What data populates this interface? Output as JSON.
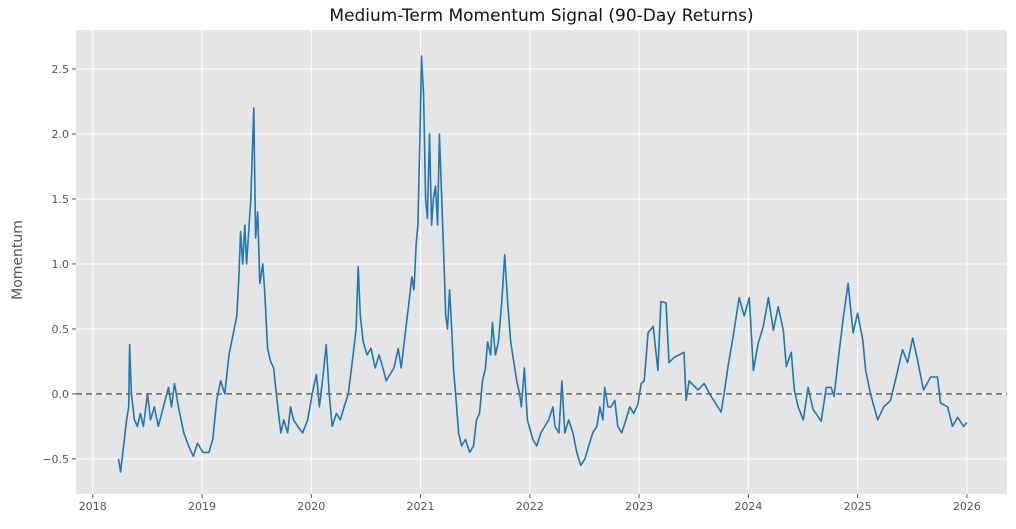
{
  "chart_data": {
    "type": "line",
    "title": "Medium-Term Momentum Signal (90-Day Returns)",
    "xlabel": "",
    "ylabel": "Momentum",
    "xlim": [
      "2017-11-06",
      "2026-05-15"
    ],
    "ylim": [
      -0.77,
      2.8
    ],
    "xticks": [
      "2018",
      "2019",
      "2020",
      "2021",
      "2022",
      "2023",
      "2024",
      "2025",
      "2026"
    ],
    "yticks": [
      -0.5,
      0.0,
      0.5,
      1.0,
      1.5,
      2.0,
      2.5
    ],
    "ytick_labels": [
      "−0.5",
      "0.0",
      "0.5",
      "1.0",
      "1.5",
      "2.0",
      "2.5"
    ],
    "grid": true,
    "reference_line": {
      "y": 0.0,
      "style": "dashed",
      "color": "#666666"
    },
    "colors": {
      "line": "#1f77b4",
      "plot_bg": "#e5e5e5",
      "grid": "#ffffff"
    },
    "series": [
      {
        "points": [
          [
            "2018-03-28",
            -0.5
          ],
          [
            "2018-04-04",
            -0.6
          ],
          [
            "2018-04-14",
            -0.4
          ],
          [
            "2018-04-24",
            -0.2
          ],
          [
            "2018-05-01",
            -0.1
          ],
          [
            "2018-05-04",
            0.38
          ],
          [
            "2018-05-10",
            0.0
          ],
          [
            "2018-05-20",
            -0.2
          ],
          [
            "2018-05-30",
            -0.25
          ],
          [
            "2018-06-09",
            -0.15
          ],
          [
            "2018-06-19",
            -0.25
          ],
          [
            "2018-07-03",
            0.0
          ],
          [
            "2018-07-13",
            -0.2
          ],
          [
            "2018-07-26",
            -0.1
          ],
          [
            "2018-08-08",
            -0.25
          ],
          [
            "2018-08-25",
            -0.1
          ],
          [
            "2018-09-11",
            0.05
          ],
          [
            "2018-09-21",
            -0.1
          ],
          [
            "2018-10-01",
            0.08
          ],
          [
            "2018-10-14",
            -0.1
          ],
          [
            "2018-11-01",
            -0.3
          ],
          [
            "2018-11-17",
            -0.4
          ],
          [
            "2018-12-03",
            -0.48
          ],
          [
            "2018-12-17",
            -0.38
          ],
          [
            "2019-01-04",
            -0.45
          ],
          [
            "2019-01-24",
            -0.45
          ],
          [
            "2019-02-06",
            -0.35
          ],
          [
            "2019-02-19",
            -0.05
          ],
          [
            "2019-03-04",
            0.1
          ],
          [
            "2019-03-18",
            0.0
          ],
          [
            "2019-04-01",
            0.3
          ],
          [
            "2019-04-14",
            0.45
          ],
          [
            "2019-04-27",
            0.6
          ],
          [
            "2019-05-04",
            0.9
          ],
          [
            "2019-05-10",
            1.25
          ],
          [
            "2019-05-17",
            1.0
          ],
          [
            "2019-05-24",
            1.3
          ],
          [
            "2019-05-30",
            1.0
          ],
          [
            "2019-06-06",
            1.25
          ],
          [
            "2019-06-13",
            1.5
          ],
          [
            "2019-06-23",
            2.2
          ],
          [
            "2019-06-29",
            1.2
          ],
          [
            "2019-07-06",
            1.4
          ],
          [
            "2019-07-13",
            0.85
          ],
          [
            "2019-07-23",
            1.0
          ],
          [
            "2019-07-29",
            0.8
          ],
          [
            "2019-08-08",
            0.35
          ],
          [
            "2019-08-18",
            0.25
          ],
          [
            "2019-08-28",
            0.2
          ],
          [
            "2019-09-11",
            -0.1
          ],
          [
            "2019-09-21",
            -0.3
          ],
          [
            "2019-10-01",
            -0.2
          ],
          [
            "2019-10-14",
            -0.3
          ],
          [
            "2019-10-24",
            -0.1
          ],
          [
            "2019-11-03",
            -0.2
          ],
          [
            "2019-11-17",
            -0.25
          ],
          [
            "2019-12-03",
            -0.3
          ],
          [
            "2019-12-20",
            -0.2
          ],
          [
            "2020-01-04",
            0.0
          ],
          [
            "2020-01-18",
            0.15
          ],
          [
            "2020-01-28",
            -0.1
          ],
          [
            "2020-02-10",
            0.15
          ],
          [
            "2020-02-20",
            0.38
          ],
          [
            "2020-03-01",
            0.0
          ],
          [
            "2020-03-11",
            -0.25
          ],
          [
            "2020-03-25",
            -0.15
          ],
          [
            "2020-04-07",
            -0.2
          ],
          [
            "2020-04-20",
            -0.1
          ],
          [
            "2020-05-04",
            0.0
          ],
          [
            "2020-05-20",
            0.3
          ],
          [
            "2020-05-30",
            0.5
          ],
          [
            "2020-06-06",
            0.98
          ],
          [
            "2020-06-13",
            0.6
          ],
          [
            "2020-06-23",
            0.4
          ],
          [
            "2020-07-06",
            0.3
          ],
          [
            "2020-07-19",
            0.35
          ],
          [
            "2020-08-02",
            0.2
          ],
          [
            "2020-08-15",
            0.3
          ],
          [
            "2020-08-28",
            0.2
          ],
          [
            "2020-09-08",
            0.1
          ],
          [
            "2020-09-21",
            0.15
          ],
          [
            "2020-10-04",
            0.2
          ],
          [
            "2020-10-18",
            0.35
          ],
          [
            "2020-10-28",
            0.2
          ],
          [
            "2020-11-10",
            0.45
          ],
          [
            "2020-11-23",
            0.7
          ],
          [
            "2020-12-03",
            0.9
          ],
          [
            "2020-12-10",
            0.8
          ],
          [
            "2020-12-17",
            1.15
          ],
          [
            "2020-12-23",
            1.3
          ],
          [
            "2020-12-30",
            2.0
          ],
          [
            "2021-01-04",
            2.6
          ],
          [
            "2021-01-11",
            2.3
          ],
          [
            "2021-01-18",
            1.5
          ],
          [
            "2021-01-24",
            1.35
          ],
          [
            "2021-01-31",
            2.0
          ],
          [
            "2021-02-07",
            1.3
          ],
          [
            "2021-02-13",
            1.5
          ],
          [
            "2021-02-20",
            1.6
          ],
          [
            "2021-02-27",
            1.3
          ],
          [
            "2021-03-05",
            2.0
          ],
          [
            "2021-03-12",
            1.55
          ],
          [
            "2021-03-19",
            1.1
          ],
          [
            "2021-03-26",
            0.6
          ],
          [
            "2021-04-01",
            0.5
          ],
          [
            "2021-04-08",
            0.8
          ],
          [
            "2021-04-15",
            0.5
          ],
          [
            "2021-04-21",
            0.2
          ],
          [
            "2021-04-28",
            0.0
          ],
          [
            "2021-05-08",
            -0.3
          ],
          [
            "2021-05-18",
            -0.4
          ],
          [
            "2021-05-31",
            -0.35
          ],
          [
            "2021-06-14",
            -0.45
          ],
          [
            "2021-06-27",
            -0.4
          ],
          [
            "2021-07-07",
            -0.2
          ],
          [
            "2021-07-17",
            -0.15
          ],
          [
            "2021-07-27",
            0.1
          ],
          [
            "2021-08-06",
            0.2
          ],
          [
            "2021-08-13",
            0.4
          ],
          [
            "2021-08-23",
            0.3
          ],
          [
            "2021-08-29",
            0.55
          ],
          [
            "2021-09-08",
            0.3
          ],
          [
            "2021-09-18",
            0.4
          ],
          [
            "2021-09-29",
            0.7
          ],
          [
            "2021-10-09",
            1.07
          ],
          [
            "2021-10-19",
            0.7
          ],
          [
            "2021-10-29",
            0.4
          ],
          [
            "2021-11-08",
            0.25
          ],
          [
            "2021-11-18",
            0.1
          ],
          [
            "2021-11-28",
            0.0
          ],
          [
            "2021-12-04",
            -0.1
          ],
          [
            "2021-12-14",
            0.2
          ],
          [
            "2021-12-24",
            -0.2
          ],
          [
            "2022-01-11",
            -0.35
          ],
          [
            "2022-01-24",
            -0.4
          ],
          [
            "2022-02-07",
            -0.3
          ],
          [
            "2022-02-20",
            -0.25
          ],
          [
            "2022-03-05",
            -0.2
          ],
          [
            "2022-03-19",
            -0.1
          ],
          [
            "2022-03-26",
            -0.25
          ],
          [
            "2022-04-08",
            -0.3
          ],
          [
            "2022-04-18",
            0.1
          ],
          [
            "2022-04-28",
            -0.3
          ],
          [
            "2022-05-11",
            -0.2
          ],
          [
            "2022-05-25",
            -0.3
          ],
          [
            "2022-06-07",
            -0.45
          ],
          [
            "2022-06-20",
            -0.55
          ],
          [
            "2022-07-04",
            -0.5
          ],
          [
            "2022-07-17",
            -0.4
          ],
          [
            "2022-07-30",
            -0.3
          ],
          [
            "2022-08-13",
            -0.25
          ],
          [
            "2022-08-23",
            -0.1
          ],
          [
            "2022-09-02",
            -0.2
          ],
          [
            "2022-09-08",
            0.05
          ],
          [
            "2022-09-19",
            -0.1
          ],
          [
            "2022-09-29",
            -0.1
          ],
          [
            "2022-10-12",
            -0.05
          ],
          [
            "2022-10-22",
            -0.25
          ],
          [
            "2022-11-04",
            -0.3
          ],
          [
            "2022-11-18",
            -0.2
          ],
          [
            "2022-12-01",
            -0.1
          ],
          [
            "2022-12-14",
            -0.15
          ],
          [
            "2022-12-28",
            -0.08
          ],
          [
            "2023-01-08",
            0.08
          ],
          [
            "2023-01-18",
            0.1
          ],
          [
            "2023-01-31",
            0.47
          ],
          [
            "2023-02-17",
            0.52
          ],
          [
            "2023-03-05",
            0.18
          ],
          [
            "2023-03-15",
            0.71
          ],
          [
            "2023-04-01",
            0.7
          ],
          [
            "2023-04-11",
            0.24
          ],
          [
            "2023-04-28",
            0.28
          ],
          [
            "2023-05-31",
            0.32
          ],
          [
            "2023-06-07",
            -0.05
          ],
          [
            "2023-06-17",
            0.1
          ],
          [
            "2023-07-17",
            0.03
          ],
          [
            "2023-08-06",
            0.08
          ],
          [
            "2023-08-30",
            -0.02
          ],
          [
            "2023-10-02",
            -0.14
          ],
          [
            "2023-10-12",
            0.0
          ],
          [
            "2023-10-25",
            0.21
          ],
          [
            "2023-11-11",
            0.44
          ],
          [
            "2023-12-01",
            0.74
          ],
          [
            "2023-12-18",
            0.6
          ],
          [
            "2024-01-04",
            0.74
          ],
          [
            "2024-01-18",
            0.18
          ],
          [
            "2024-02-03",
            0.39
          ],
          [
            "2024-02-20",
            0.52
          ],
          [
            "2024-03-08",
            0.74
          ],
          [
            "2024-03-25",
            0.49
          ],
          [
            "2024-04-10",
            0.67
          ],
          [
            "2024-04-27",
            0.49
          ],
          [
            "2024-05-07",
            0.21
          ],
          [
            "2024-05-24",
            0.32
          ],
          [
            "2024-06-03",
            0.03
          ],
          [
            "2024-06-16",
            -0.1
          ],
          [
            "2024-07-03",
            -0.2
          ],
          [
            "2024-07-19",
            0.05
          ],
          [
            "2024-08-05",
            -0.12
          ],
          [
            "2024-09-01",
            -0.21
          ],
          [
            "2024-09-18",
            0.05
          ],
          [
            "2024-10-04",
            0.05
          ],
          [
            "2024-10-14",
            -0.02
          ],
          [
            "2024-10-28",
            0.26
          ],
          [
            "2024-11-13",
            0.57
          ],
          [
            "2024-11-30",
            0.85
          ],
          [
            "2024-12-17",
            0.47
          ],
          [
            "2025-01-01",
            0.62
          ],
          [
            "2025-01-18",
            0.42
          ],
          [
            "2025-01-28",
            0.18
          ],
          [
            "2025-02-13",
            0.0
          ],
          [
            "2025-03-09",
            -0.2
          ],
          [
            "2025-03-29",
            -0.1
          ],
          [
            "2025-04-21",
            -0.05
          ],
          [
            "2025-05-15",
            0.18
          ],
          [
            "2025-05-31",
            0.34
          ],
          [
            "2025-06-17",
            0.24
          ],
          [
            "2025-07-04",
            0.43
          ],
          [
            "2025-07-20",
            0.26
          ],
          [
            "2025-08-09",
            0.03
          ],
          [
            "2025-09-02",
            0.13
          ],
          [
            "2025-09-25",
            0.13
          ],
          [
            "2025-10-05",
            -0.07
          ],
          [
            "2025-10-29",
            -0.1
          ],
          [
            "2025-11-14",
            -0.25
          ],
          [
            "2025-12-01",
            -0.18
          ],
          [
            "2025-12-21",
            -0.25
          ],
          [
            "2026-01-01",
            -0.22
          ]
        ]
      }
    ]
  }
}
